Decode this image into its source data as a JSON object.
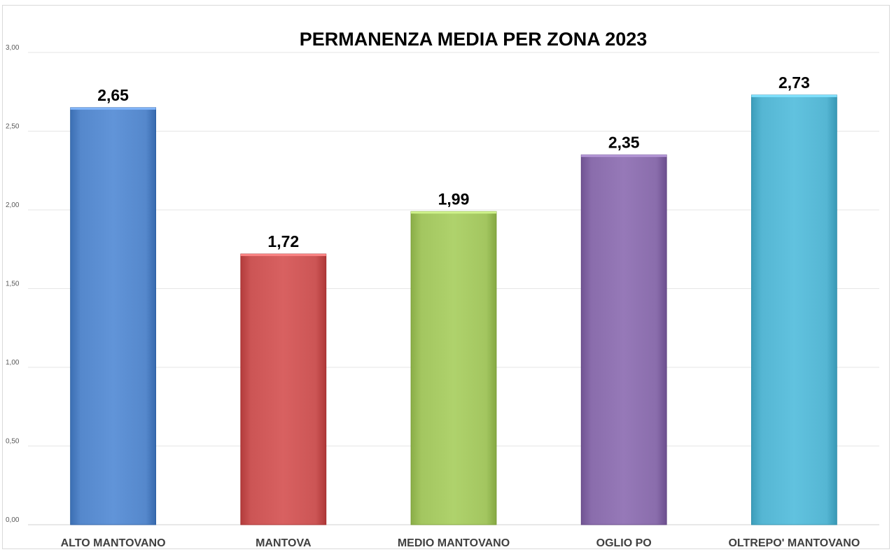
{
  "chart_data": {
    "type": "bar",
    "title": "PERMANENZA MEDIA PER ZONA 2023",
    "categories": [
      "ALTO MANTOVANO",
      "MANTOVA",
      "MEDIO MANTOVANO",
      "OGLIO PO",
      "OLTREPO' MANTOVANO"
    ],
    "values": [
      2.65,
      1.72,
      1.99,
      2.35,
      2.73
    ],
    "value_labels": [
      "2,65",
      "1,72",
      "1,99",
      "2,35",
      "2,73"
    ],
    "colors": [
      "#5588cc",
      "#cc5555",
      "#a3c660",
      "#8a6dac",
      "#55b6d3"
    ],
    "ylim": [
      0,
      3
    ],
    "yticks": [
      0,
      0.5,
      1,
      1.5,
      2,
      2.5,
      3
    ],
    "ytick_labels": [
      "0,00",
      "0,50",
      "1,00",
      "1,50",
      "2,00",
      "2,50",
      "3,00"
    ],
    "grid": true,
    "legend": "none",
    "xlabel": "",
    "ylabel": ""
  }
}
